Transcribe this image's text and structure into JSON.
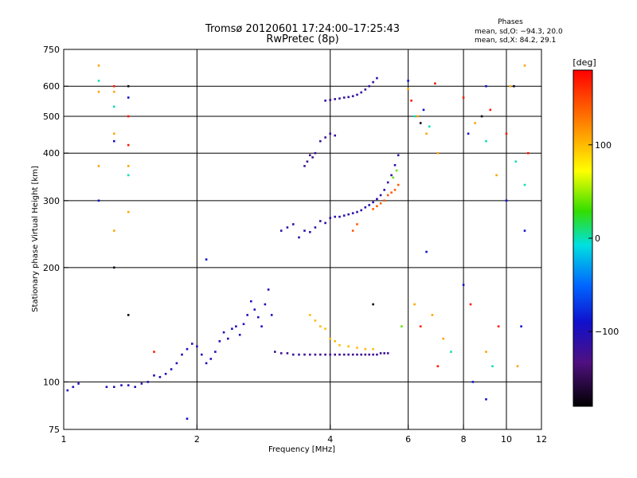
{
  "chart_data": {
    "type": "scatter",
    "title": "Tromsø 20120601 17:24:00–17:25:43",
    "subtitle": "RwPretec (8p)",
    "xlabel": "Frequency [MHz]",
    "ylabel": "Stationary phase Virtual Height [km]",
    "xscale": "log",
    "yscale": "log",
    "xlim": [
      1,
      12
    ],
    "ylim": [
      75,
      750
    ],
    "x_ticks": [
      1,
      2,
      4,
      6,
      8,
      10,
      12
    ],
    "y_ticks": [
      75,
      100,
      200,
      300,
      400,
      500,
      600,
      750
    ],
    "grid": true,
    "legend_header": "Phases",
    "legend_lines": [
      "mean, sd,O: −94.3, 20.0",
      "mean, sd,X:  84.2, 29.1"
    ],
    "colorbar": {
      "label": "[deg]",
      "range": [
        -180,
        180
      ],
      "ticks": [
        100,
        0,
        -100
      ],
      "placement": "right"
    },
    "series": [
      {
        "color_deg": -100,
        "points": [
          [
            1.02,
            95
          ],
          [
            1.05,
            97
          ],
          [
            1.08,
            99
          ],
          [
            1.25,
            97
          ],
          [
            1.3,
            97
          ],
          [
            1.35,
            98
          ],
          [
            1.4,
            98
          ],
          [
            1.45,
            97
          ],
          [
            1.5,
            99
          ],
          [
            1.55,
            100
          ],
          [
            1.6,
            104
          ],
          [
            1.65,
            103
          ],
          [
            1.7,
            105
          ],
          [
            1.75,
            108
          ],
          [
            1.8,
            112
          ],
          [
            1.85,
            118
          ],
          [
            1.9,
            122
          ],
          [
            1.95,
            126
          ],
          [
            2.0,
            124
          ],
          [
            2.05,
            118
          ],
          [
            2.1,
            112
          ],
          [
            2.15,
            115
          ],
          [
            2.2,
            120
          ],
          [
            2.25,
            128
          ],
          [
            2.3,
            135
          ],
          [
            2.35,
            130
          ],
          [
            2.4,
            138
          ],
          [
            2.45,
            140
          ],
          [
            2.5,
            133
          ],
          [
            2.55,
            142
          ],
          [
            2.6,
            150
          ],
          [
            2.65,
            163
          ],
          [
            2.7,
            155
          ],
          [
            2.75,
            148
          ],
          [
            2.8,
            140
          ],
          [
            2.85,
            160
          ],
          [
            2.9,
            175
          ],
          [
            2.95,
            150
          ]
        ]
      },
      {
        "color_deg": -120,
        "points": [
          [
            3.0,
            120
          ],
          [
            3.1,
            119
          ],
          [
            3.2,
            119
          ],
          [
            3.3,
            118
          ],
          [
            3.4,
            118
          ],
          [
            3.5,
            118
          ],
          [
            3.6,
            118
          ],
          [
            3.7,
            118
          ],
          [
            3.8,
            118
          ],
          [
            3.9,
            118
          ],
          [
            4.0,
            118
          ],
          [
            4.1,
            118
          ],
          [
            4.2,
            118
          ],
          [
            4.3,
            118
          ],
          [
            4.4,
            118
          ],
          [
            4.5,
            118
          ],
          [
            4.6,
            118
          ],
          [
            4.7,
            118
          ],
          [
            4.8,
            118
          ],
          [
            4.9,
            118
          ],
          [
            5.0,
            118
          ],
          [
            5.1,
            118
          ],
          [
            5.2,
            119
          ],
          [
            5.3,
            119
          ],
          [
            5.4,
            119
          ]
        ]
      },
      {
        "color_deg": -110,
        "points": [
          [
            3.1,
            250
          ],
          [
            3.2,
            255
          ],
          [
            3.3,
            260
          ],
          [
            3.4,
            240
          ],
          [
            3.5,
            250
          ],
          [
            3.6,
            248
          ],
          [
            3.7,
            255
          ],
          [
            3.8,
            265
          ],
          [
            3.9,
            262
          ],
          [
            4.0,
            270
          ],
          [
            4.1,
            272
          ],
          [
            4.2,
            272
          ],
          [
            4.3,
            274
          ],
          [
            4.4,
            276
          ],
          [
            4.5,
            278
          ],
          [
            4.6,
            280
          ],
          [
            4.7,
            283
          ],
          [
            4.8,
            288
          ],
          [
            4.9,
            292
          ],
          [
            5.0,
            297
          ],
          [
            5.1,
            303
          ],
          [
            5.2,
            310
          ],
          [
            5.3,
            320
          ],
          [
            5.4,
            335
          ],
          [
            5.5,
            350
          ],
          [
            5.6,
            372
          ],
          [
            5.7,
            395
          ]
        ]
      },
      {
        "color_deg": -120,
        "points": [
          [
            3.5,
            370
          ],
          [
            3.55,
            380
          ],
          [
            3.6,
            395
          ],
          [
            3.65,
            390
          ],
          [
            3.7,
            400
          ],
          [
            3.8,
            430
          ],
          [
            3.9,
            440
          ],
          [
            4.0,
            450
          ],
          [
            4.1,
            445
          ]
        ]
      },
      {
        "color_deg": -115,
        "points": [
          [
            3.9,
            550
          ],
          [
            4.0,
            552
          ],
          [
            4.1,
            555
          ],
          [
            4.2,
            557
          ],
          [
            4.3,
            560
          ],
          [
            4.4,
            562
          ],
          [
            4.5,
            565
          ],
          [
            4.6,
            570
          ],
          [
            4.7,
            578
          ],
          [
            4.8,
            588
          ],
          [
            4.9,
            600
          ],
          [
            5.0,
            615
          ],
          [
            5.1,
            630
          ]
        ]
      },
      {
        "color_deg": 100,
        "points": [
          [
            3.6,
            150
          ],
          [
            3.7,
            145
          ],
          [
            3.8,
            140
          ],
          [
            3.9,
            138
          ],
          [
            4.0,
            130
          ],
          [
            4.1,
            128
          ],
          [
            4.2,
            125
          ],
          [
            4.4,
            124
          ],
          [
            4.6,
            123
          ],
          [
            4.8,
            122
          ],
          [
            5.0,
            122
          ]
        ]
      },
      {
        "color_deg": 140,
        "points": [
          [
            5.0,
            285
          ],
          [
            5.1,
            290
          ],
          [
            5.2,
            295
          ],
          [
            5.3,
            300
          ],
          [
            5.4,
            310
          ],
          [
            5.5,
            315
          ],
          [
            5.6,
            320
          ],
          [
            5.7,
            330
          ],
          [
            4.5,
            250
          ],
          [
            4.6,
            260
          ]
        ]
      },
      {
        "color_deg": 40,
        "points": [
          [
            5.55,
            345
          ],
          [
            5.65,
            360
          ],
          [
            5.8,
            140
          ]
        ]
      },
      {
        "color_deg": 110,
        "points": [
          [
            1.2,
            680
          ],
          [
            1.2,
            580
          ],
          [
            1.3,
            580
          ],
          [
            1.3,
            450
          ],
          [
            1.2,
            370
          ],
          [
            1.4,
            370
          ],
          [
            1.3,
            250
          ],
          [
            1.4,
            280
          ],
          [
            6.0,
            590
          ],
          [
            6.3,
            500
          ],
          [
            6.6,
            450
          ],
          [
            7.0,
            400
          ],
          [
            8.5,
            480
          ],
          [
            9.5,
            350
          ],
          [
            10.2,
            600
          ],
          [
            11.0,
            680
          ],
          [
            6.2,
            160
          ],
          [
            6.8,
            150
          ],
          [
            7.2,
            130
          ],
          [
            9.0,
            120
          ],
          [
            10.6,
            110
          ]
        ]
      },
      {
        "color_deg": 170,
        "points": [
          [
            1.3,
            600
          ],
          [
            1.4,
            500
          ],
          [
            1.4,
            420
          ],
          [
            6.1,
            550
          ],
          [
            6.9,
            610
          ],
          [
            8.0,
            560
          ],
          [
            9.2,
            520
          ],
          [
            10.0,
            450
          ],
          [
            11.2,
            400
          ],
          [
            6.4,
            140
          ],
          [
            7.0,
            110
          ],
          [
            8.3,
            160
          ],
          [
            9.6,
            140
          ],
          [
            1.6,
            120
          ]
        ]
      },
      {
        "color_deg": 0,
        "points": [
          [
            1.2,
            620
          ],
          [
            1.3,
            530
          ],
          [
            1.4,
            350
          ],
          [
            6.2,
            500
          ],
          [
            6.7,
            470
          ],
          [
            9.0,
            430
          ],
          [
            10.5,
            380
          ],
          [
            11.0,
            330
          ],
          [
            7.5,
            120
          ],
          [
            9.3,
            110
          ]
        ]
      },
      {
        "color_deg": -170,
        "points": [
          [
            1.3,
            200
          ],
          [
            1.4,
            150
          ],
          [
            1.4,
            600
          ],
          [
            6.4,
            480
          ],
          [
            8.8,
            500
          ],
          [
            10.4,
            600
          ],
          [
            5.0,
            160
          ]
        ]
      },
      {
        "color_deg": -90,
        "points": [
          [
            1.3,
            430
          ],
          [
            1.4,
            560
          ],
          [
            6.0,
            620
          ],
          [
            6.5,
            520
          ],
          [
            8.2,
            450
          ],
          [
            9.0,
            600
          ],
          [
            10.0,
            300
          ],
          [
            11.0,
            250
          ],
          [
            6.6,
            220
          ],
          [
            8.0,
            180
          ],
          [
            10.8,
            140
          ],
          [
            9.0,
            90
          ],
          [
            8.4,
            100
          ],
          [
            1.2,
            300
          ],
          [
            2.1,
            210
          ],
          [
            1.9,
            80
          ]
        ]
      }
    ]
  }
}
